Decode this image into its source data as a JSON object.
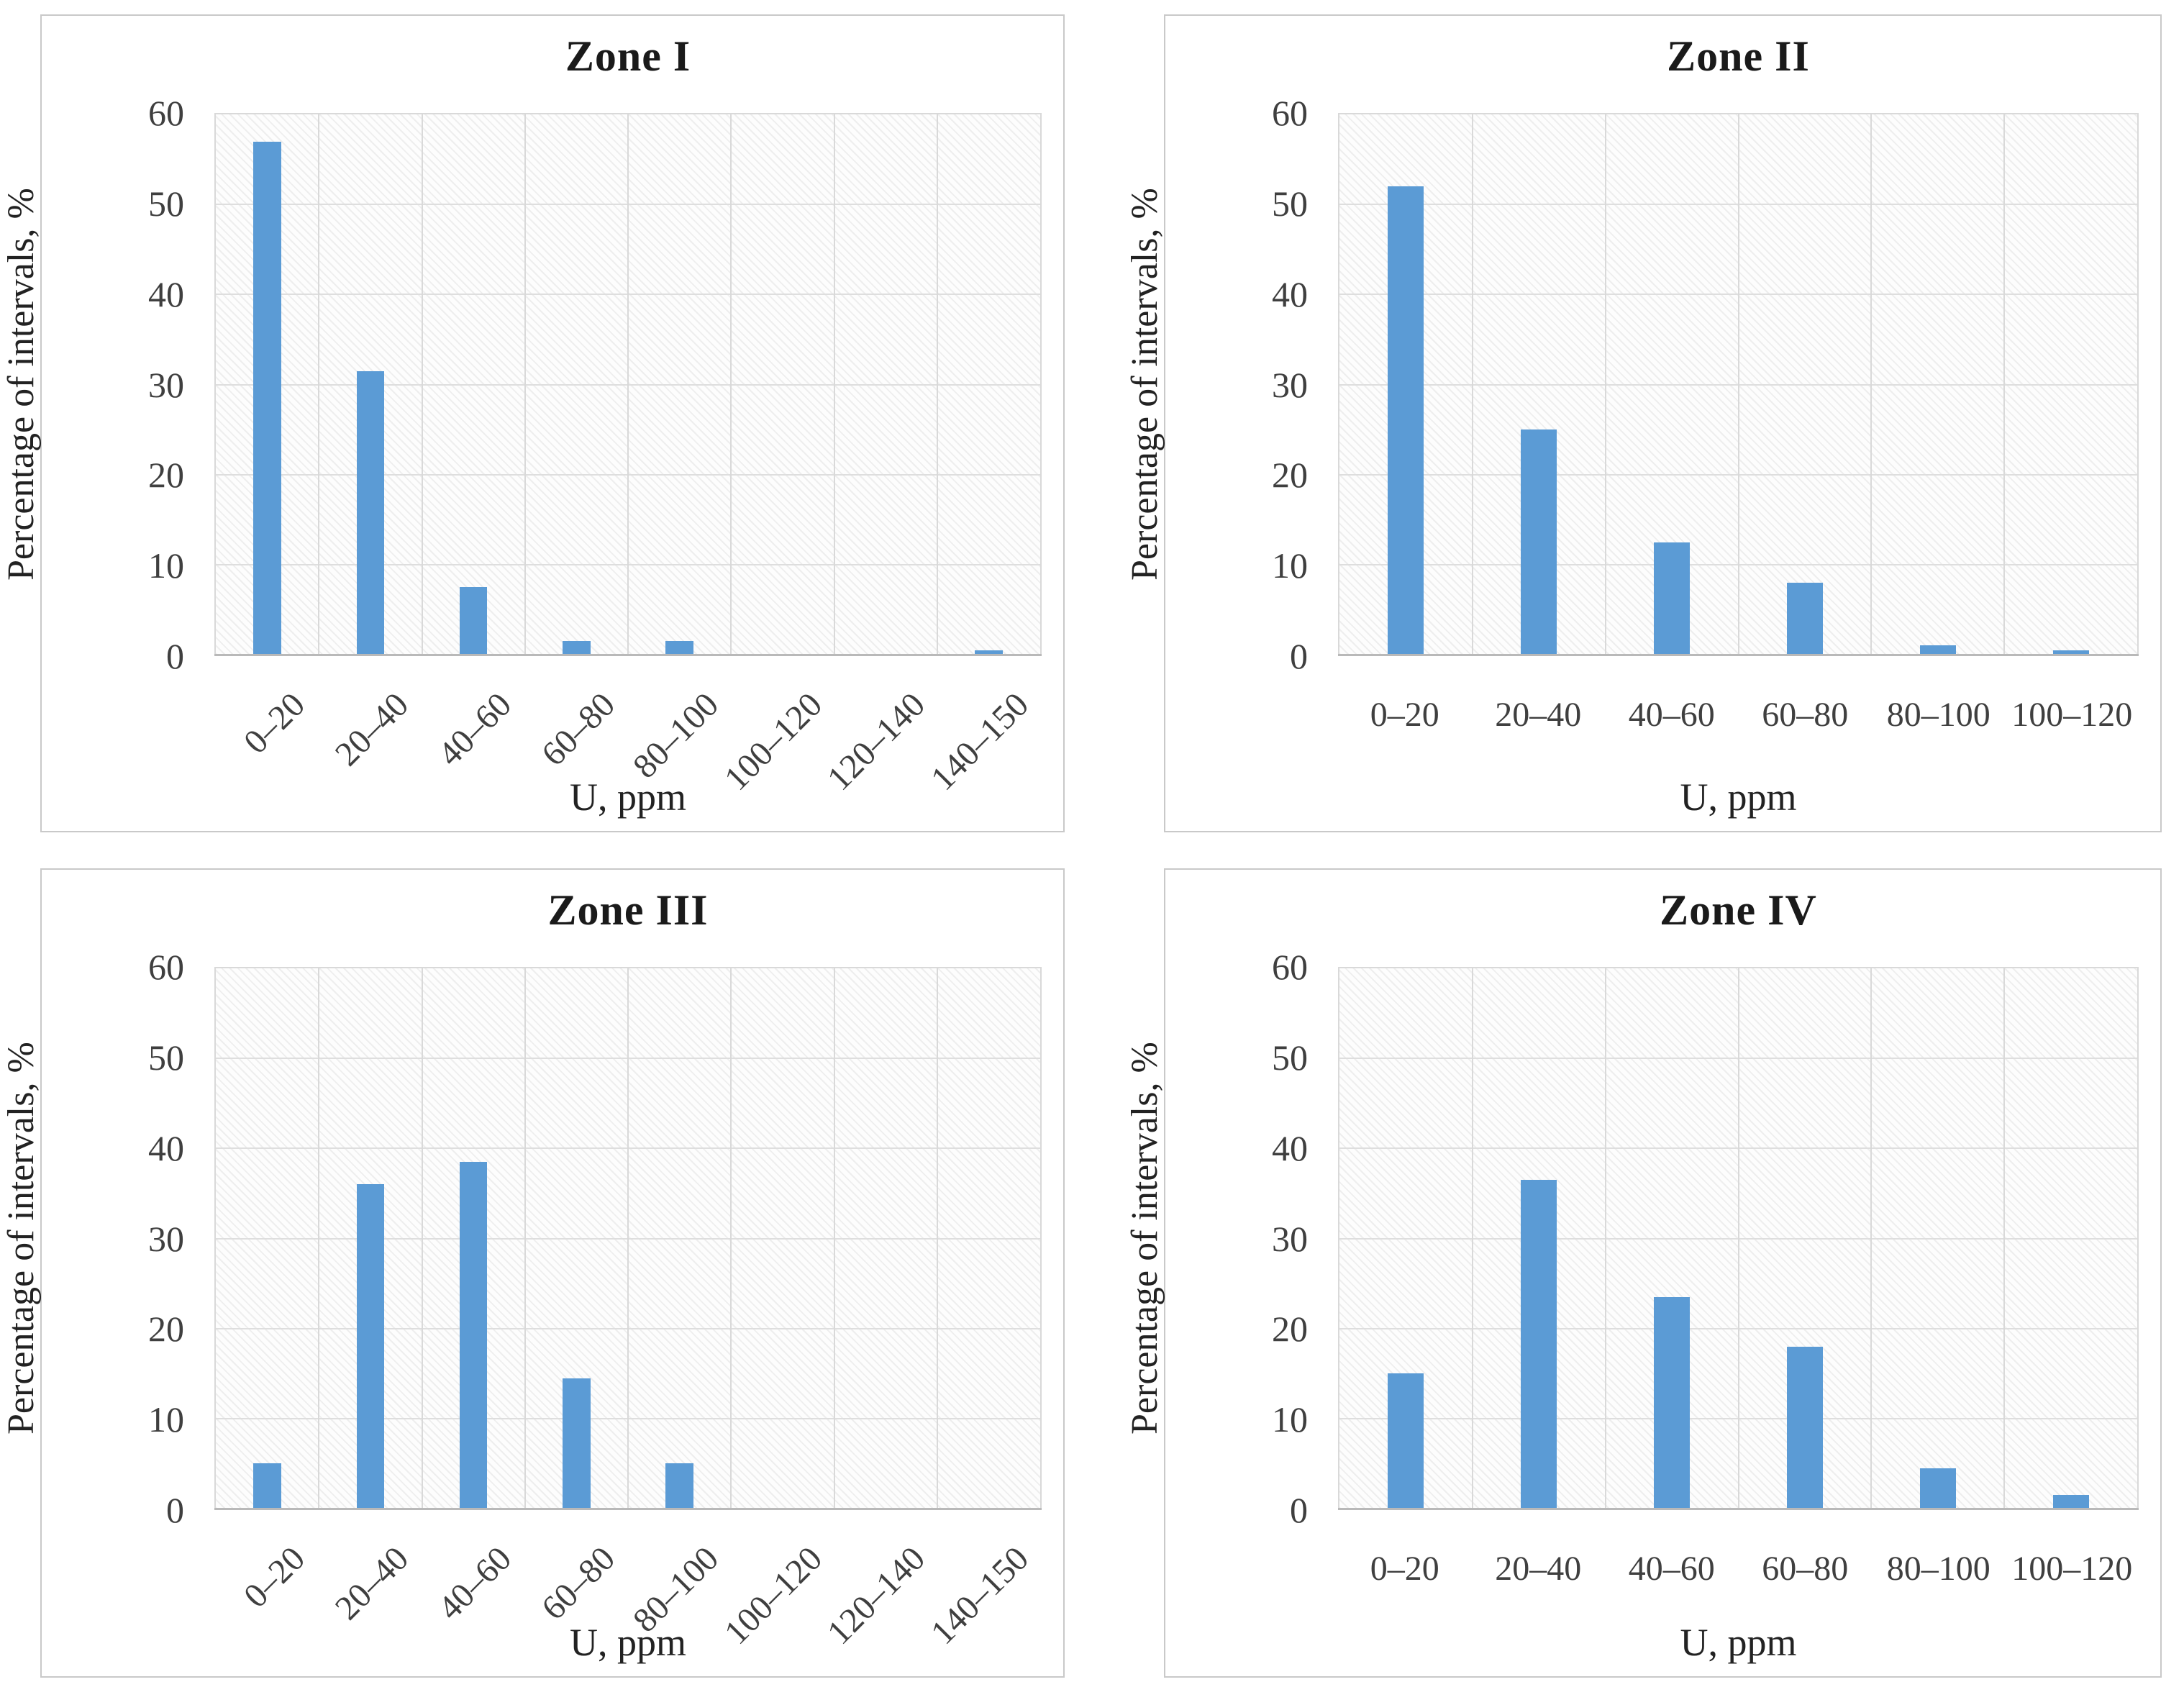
{
  "figure": {
    "bar_color": "#5B9BD5",
    "gridline_color": "#d9d9d9",
    "axis_line_color": "#b9b9b9",
    "panel_border_color": "#c9c9c9",
    "tick_text_color": "#3f3f3f",
    "y_ticks": [
      0,
      10,
      20,
      30,
      40,
      50,
      60
    ]
  },
  "chart_data": [
    {
      "type": "bar",
      "title": "Zone I",
      "xlabel": "U, ppm",
      "ylabel": "Percentage of intervals, %",
      "categories": [
        "0–20",
        "20–40",
        "40–60",
        "60–80",
        "80–100",
        "100–120",
        "120–140",
        "140–150"
      ],
      "values": [
        57,
        31.5,
        7.5,
        1.5,
        1.5,
        0,
        0,
        0.5
      ],
      "ylim": [
        0,
        60
      ],
      "grid": true,
      "x_label_rotation": 45,
      "legend": "none"
    },
    {
      "type": "bar",
      "title": "Zone II",
      "xlabel": "U, ppm",
      "ylabel": "Percentage of intervals, %",
      "categories": [
        "0–20",
        "20–40",
        "40–60",
        "60–80",
        "80–100",
        "100–120"
      ],
      "values": [
        52,
        25,
        12.5,
        8,
        1,
        0.5
      ],
      "ylim": [
        0,
        60
      ],
      "grid": true,
      "x_label_rotation": 0,
      "legend": "none"
    },
    {
      "type": "bar",
      "title": "Zone III",
      "xlabel": "U, ppm",
      "ylabel": "Percentage of intervals, %",
      "categories": [
        "0–20",
        "20–40",
        "40–60",
        "60–80",
        "80–100",
        "100–120",
        "120–140",
        "140–150"
      ],
      "values": [
        5,
        36,
        38.5,
        14.5,
        5,
        0,
        0,
        0
      ],
      "ylim": [
        0,
        60
      ],
      "grid": true,
      "x_label_rotation": 45,
      "legend": "none"
    },
    {
      "type": "bar",
      "title": "Zone IV",
      "xlabel": "U, ppm",
      "ylabel": "Percentage of intervals, %",
      "categories": [
        "0–20",
        "20–40",
        "40–60",
        "60–80",
        "80–100",
        "100–120"
      ],
      "values": [
        15,
        36.5,
        23.5,
        18,
        4.5,
        1.5
      ],
      "ylim": [
        0,
        60
      ],
      "grid": true,
      "x_label_rotation": 0,
      "legend": "none"
    }
  ]
}
